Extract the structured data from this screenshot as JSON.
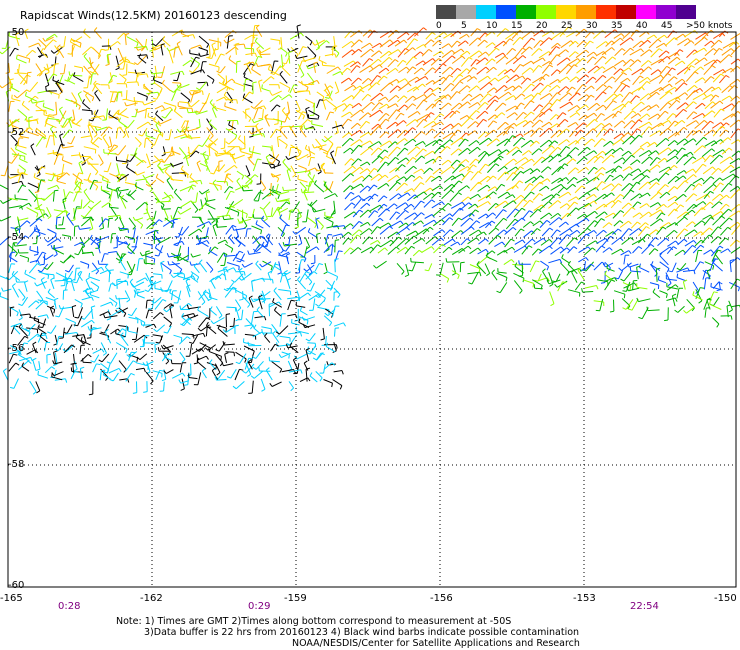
{
  "title": "Rapidscat Winds(12.5KM) 20160123 descending",
  "scale": {
    "colors": [
      "#4a4a4a",
      "#a8a8a8",
      "#00d0ff",
      "#0050ff",
      "#00b000",
      "#90ff00",
      "#ffd700",
      "#ff9d00",
      "#ff3000",
      "#c00000",
      "#ff00ff",
      "#9000d0",
      "#500090"
    ],
    "labels": [
      "0",
      "5",
      "10",
      "15",
      "20",
      "25",
      "30",
      "35",
      "40",
      "45",
      ">50 knots"
    ]
  },
  "lat_labels": [
    "-50",
    "-52",
    "-54",
    "-56",
    "-58",
    "-60"
  ],
  "lon_labels": [
    "-165",
    "-162",
    "-159",
    "-156",
    "-153",
    "-150"
  ],
  "lat_values": [
    -50,
    -52,
    -54,
    -56,
    -58,
    -60
  ],
  "lon_values": [
    -165,
    -162,
    -159,
    -156,
    -153,
    -150
  ],
  "times": [
    "0:28",
    "0:29",
    "22:54"
  ],
  "notes": [
    "Note: 1) Times are GMT 2)Times along bottom correspond to measurement at -50S",
    "3)Data buffer is 22 hrs from 20160123 4) Black wind barbs indicate possible contamination",
    "NOAA/NESDIS/Center for Satellite Applications and Research"
  ]
}
